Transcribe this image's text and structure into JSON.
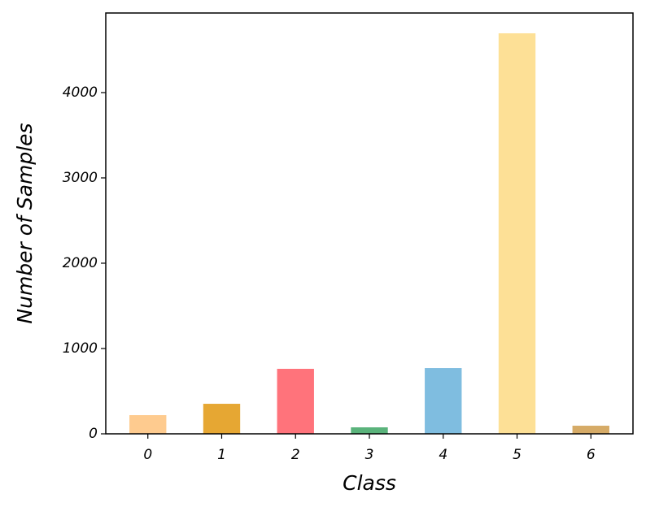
{
  "chart_data": {
    "type": "bar",
    "x_label": "Class",
    "y_label": "Number of Samples",
    "categories": [
      "0",
      "1",
      "2",
      "3",
      "4",
      "5",
      "6"
    ],
    "values": [
      219,
      352,
      762,
      76,
      771,
      4695,
      95
    ],
    "colors": [
      "#fecb8f",
      "#e6a733",
      "#ff737b",
      "#5ab37b",
      "#7fbde0",
      "#fde096",
      "#d6ab67"
    ],
    "ylim": [
      0,
      4933
    ],
    "yticks": [
      0,
      1000,
      2000,
      3000,
      4000
    ],
    "grid": false
  }
}
